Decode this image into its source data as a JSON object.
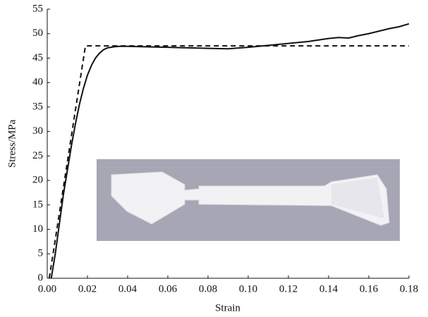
{
  "chart_data": {
    "type": "line",
    "x_label": "Strain",
    "y_label": "Stress/MPa",
    "xlim": [
      0,
      0.18
    ],
    "ylim": [
      0,
      55
    ],
    "xticks": [
      {
        "value": 0,
        "label": "0.00"
      },
      {
        "value": 0.02,
        "label": "0.02"
      },
      {
        "value": 0.04,
        "label": "0.04"
      },
      {
        "value": 0.06,
        "label": "0.06"
      },
      {
        "value": 0.08,
        "label": "0.08"
      },
      {
        "value": 0.1,
        "label": "0.10"
      },
      {
        "value": 0.12,
        "label": "0.12"
      },
      {
        "value": 0.14,
        "label": "0.14"
      },
      {
        "value": 0.16,
        "label": "0.16"
      },
      {
        "value": 0.18,
        "label": "0.18"
      }
    ],
    "yticks": [
      0,
      5,
      10,
      15,
      20,
      25,
      30,
      35,
      40,
      45,
      50,
      55
    ],
    "grid": false,
    "series": [
      {
        "color": "#111111",
        "line_style": "solid",
        "x": [
          0.002,
          0.004,
          0.006,
          0.008,
          0.01,
          0.012,
          0.014,
          0.016,
          0.018,
          0.02,
          0.022,
          0.024,
          0.026,
          0.028,
          0.03,
          0.033,
          0.036,
          0.04,
          0.05,
          0.06,
          0.07,
          0.08,
          0.09,
          0.1,
          0.11,
          0.12,
          0.13,
          0.14,
          0.145,
          0.15,
          0.155,
          0.16,
          0.165,
          0.17,
          0.175,
          0.18
        ],
        "values": [
          0,
          5,
          11,
          17,
          22,
          27,
          31.5,
          35.5,
          38.8,
          41.5,
          43.5,
          45,
          46,
          46.7,
          47.1,
          47.3,
          47.4,
          47.4,
          47.3,
          47.2,
          47.1,
          47,
          46.9,
          47.2,
          47.6,
          48,
          48.4,
          49,
          49.2,
          49.1,
          49.6,
          50,
          50.5,
          51,
          51.4,
          52
        ]
      },
      {
        "color": "#111111",
        "line_style": "dashed",
        "x": [
          0.001,
          0.019,
          0.18
        ],
        "values": [
          0,
          47.5,
          47.5
        ]
      }
    ]
  }
}
